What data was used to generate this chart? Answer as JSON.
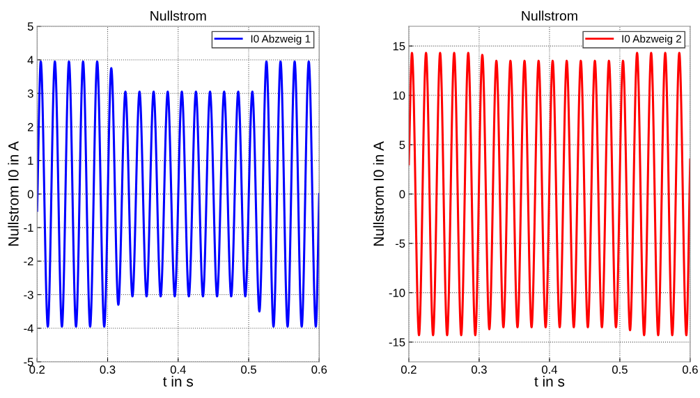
{
  "chart_data": [
    {
      "type": "line",
      "title": "Nullstrom",
      "xlabel": "t in s",
      "ylabel": "Nullstrom I0 in A",
      "x": [
        0.2,
        0.2052,
        0.2152,
        0.2252,
        0.2352,
        0.2452,
        0.2552,
        0.2652,
        0.2752,
        0.2852,
        0.2952,
        0.3052,
        0.3152,
        0.3252,
        0.3352,
        0.3452,
        0.3552,
        0.3652,
        0.3752,
        0.3852,
        0.3952,
        0.4052,
        0.4152,
        0.4252,
        0.4352,
        0.4452,
        0.4552,
        0.4652,
        0.4752,
        0.4852,
        0.4952,
        0.5052,
        0.5152,
        0.5252,
        0.5352,
        0.5452,
        0.5552,
        0.5652,
        0.5752,
        0.5852,
        0.5952,
        0.6
      ],
      "series": [
        {
          "name": "I0 Abzweig 1",
          "color": "#0000ff",
          "values": [
            -0.5,
            3.95,
            -3.95,
            3.95,
            -3.95,
            3.95,
            -3.95,
            3.95,
            -3.95,
            3.95,
            -3.95,
            3.75,
            -3.3,
            3.05,
            -3.05,
            3.05,
            -3.05,
            3.05,
            -3.05,
            3.05,
            -3.05,
            3.05,
            -3.05,
            3.05,
            -3.05,
            3.05,
            -3.05,
            3.05,
            -3.05,
            3.05,
            -3.05,
            3.05,
            -3.5,
            3.95,
            -3.95,
            3.95,
            -3.95,
            3.95,
            -3.95,
            3.95,
            -3.95,
            0
          ]
        }
      ],
      "xlim": [
        0.2,
        0.6
      ],
      "xticks": [
        0.2,
        0.3,
        0.4,
        0.5,
        0.6
      ],
      "ylim": [
        -5,
        5
      ],
      "yticks": [
        -5,
        -4,
        -3,
        -2,
        -1,
        0,
        1,
        2,
        3,
        4,
        5
      ],
      "grid": true,
      "legend": "top right",
      "line_style": "solid"
    },
    {
      "type": "line",
      "title": "Nullstrom",
      "xlabel": "t in s",
      "ylabel": "Nullstrom I0 in A",
      "x": [
        0.2,
        0.2045,
        0.2145,
        0.2245,
        0.2345,
        0.2445,
        0.2545,
        0.2645,
        0.2745,
        0.2845,
        0.2945,
        0.3045,
        0.3145,
        0.3245,
        0.3345,
        0.3445,
        0.3545,
        0.3645,
        0.3745,
        0.3845,
        0.3945,
        0.4045,
        0.4145,
        0.4245,
        0.4345,
        0.4445,
        0.4545,
        0.4645,
        0.4745,
        0.4845,
        0.4945,
        0.5045,
        0.5145,
        0.5245,
        0.5345,
        0.5445,
        0.5545,
        0.5645,
        0.5745,
        0.5845,
        0.5945,
        0.6
      ],
      "series": [
        {
          "name": "I0 Abzweig 2",
          "color": "#ff0000",
          "values": [
            3,
            14.3,
            -14.3,
            14.3,
            -14.3,
            14.3,
            -14.3,
            14.3,
            -14.3,
            14.3,
            -14.3,
            14.1,
            -13.7,
            13.5,
            -13.5,
            13.5,
            -13.5,
            13.5,
            -13.5,
            13.5,
            -13.5,
            13.5,
            -13.5,
            13.5,
            -13.5,
            13.5,
            -13.5,
            13.5,
            -13.5,
            13.5,
            -13.5,
            13.5,
            -13.8,
            14.3,
            -14.3,
            14.3,
            -14.3,
            14.3,
            -14.3,
            14.3,
            -14.3,
            3.5
          ]
        }
      ],
      "xlim": [
        0.2,
        0.6
      ],
      "xticks": [
        0.2,
        0.3,
        0.4,
        0.5,
        0.6
      ],
      "ylim": [
        -17,
        17
      ],
      "yticks": [
        -15,
        -10,
        -5,
        0,
        5,
        10,
        15
      ],
      "grid": true,
      "legend": "top right",
      "line_style": "solid"
    }
  ]
}
